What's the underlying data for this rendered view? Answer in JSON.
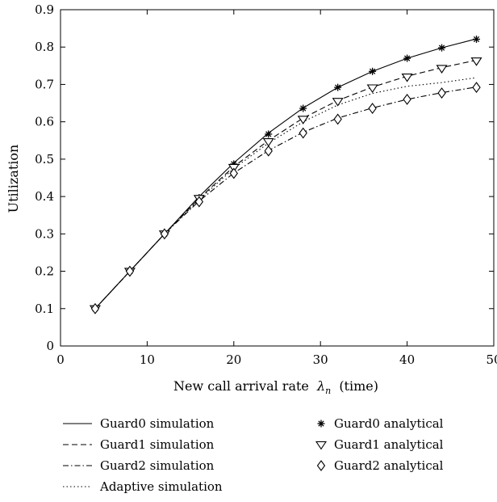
{
  "chart_data": {
    "type": "line",
    "xlabel": "New call arrival rate",
    "xlabel_symbol": "λ",
    "xlabel_subscript": "n",
    "xlabel_unit": "(time)",
    "ylabel": "Utilization",
    "xlim": [
      0,
      50
    ],
    "ylim": [
      0,
      0.9
    ],
    "xticks": [
      0,
      10,
      20,
      30,
      40,
      50
    ],
    "yticks": [
      0,
      0.1,
      0.2,
      0.3,
      0.4,
      0.5,
      0.6,
      0.7,
      0.8,
      0.9
    ],
    "grid": false,
    "legend_position": "below",
    "x": [
      4,
      8,
      12,
      16,
      20,
      24,
      28,
      32,
      36,
      40,
      44,
      48
    ],
    "series": [
      {
        "name": "Guard0 simulation",
        "kind": "line",
        "dash": "solid",
        "values": [
          0.1,
          0.2,
          0.3,
          0.4,
          0.49,
          0.57,
          0.637,
          0.692,
          0.735,
          0.77,
          0.798,
          0.822
        ]
      },
      {
        "name": "Guard1 simulation",
        "kind": "line",
        "dash": "dashed",
        "values": [
          0.1,
          0.2,
          0.3,
          0.395,
          0.48,
          0.55,
          0.61,
          0.657,
          0.693,
          0.722,
          0.745,
          0.765
        ]
      },
      {
        "name": "Guard2 simulation",
        "kind": "line",
        "dash": "dashdot",
        "values": [
          0.1,
          0.2,
          0.3,
          0.388,
          0.463,
          0.523,
          0.572,
          0.61,
          0.637,
          0.66,
          0.678,
          0.693
        ]
      },
      {
        "name": "Adaptive simulation",
        "kind": "line",
        "dash": "dotted",
        "values": [
          0.1,
          0.2,
          0.3,
          0.392,
          0.475,
          0.543,
          0.6,
          0.645,
          0.676,
          0.695,
          0.705,
          0.718
        ]
      },
      {
        "name": "Guard0 analytical",
        "kind": "marker",
        "marker": "asterisk",
        "values": [
          0.1,
          0.2,
          0.3,
          0.397,
          0.487,
          0.567,
          0.636,
          0.692,
          0.735,
          0.77,
          0.798,
          0.821
        ]
      },
      {
        "name": "Guard1 analytical",
        "kind": "marker",
        "marker": "triangle-down",
        "values": [
          0.1,
          0.2,
          0.3,
          0.395,
          0.478,
          0.547,
          0.607,
          0.655,
          0.691,
          0.72,
          0.743,
          0.763
        ]
      },
      {
        "name": "Guard2 analytical",
        "kind": "marker",
        "marker": "diamond",
        "values": [
          0.1,
          0.2,
          0.3,
          0.386,
          0.462,
          0.522,
          0.57,
          0.607,
          0.636,
          0.66,
          0.677,
          0.692
        ]
      }
    ]
  }
}
